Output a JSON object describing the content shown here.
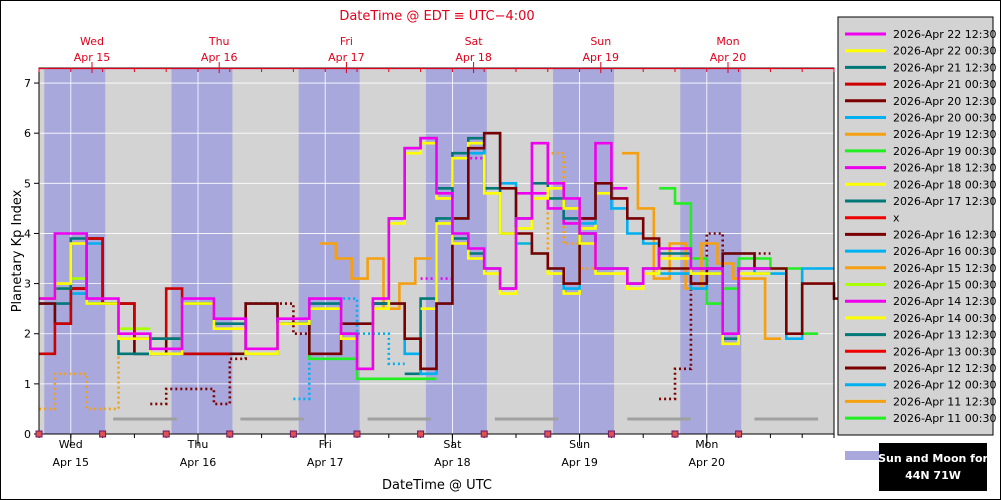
{
  "chart_data": {
    "type": "line",
    "title": "DateTime @ EDT ≡ UTC−4:00",
    "xlabel": "DateTime @ UTC",
    "ylabel": "Planetary Kp Index",
    "ylim": [
      0,
      7.3
    ],
    "yticks": [
      "0",
      "1",
      "2",
      "3",
      "4",
      "5",
      "6",
      "7"
    ],
    "grid": true,
    "legend_position": "right",
    "x_domain": [
      "2026-04-14 18:00",
      "2026-04-21 00:00"
    ],
    "top_axis": {
      "color": "#e0001b",
      "ticks": [
        {
          "at": "2026-04-15 04:00",
          "day": "Wed",
          "date": "Apr 15"
        },
        {
          "at": "2026-04-16 04:00",
          "day": "Thu",
          "date": "Apr 16"
        },
        {
          "at": "2026-04-17 04:00",
          "day": "Fri",
          "date": "Apr 17"
        },
        {
          "at": "2026-04-18 04:00",
          "day": "Sat",
          "date": "Apr 18"
        },
        {
          "at": "2026-04-19 04:00",
          "day": "Sun",
          "date": "Apr 19"
        },
        {
          "at": "2026-04-20 04:00",
          "day": "Mon",
          "date": "Apr 20"
        }
      ]
    },
    "bottom_axis": {
      "ticks": [
        {
          "at": "2026-04-15 00:00",
          "day": "Wed",
          "date": "Apr 15"
        },
        {
          "at": "2026-04-16 00:00",
          "day": "Thu",
          "date": "Apr 16"
        },
        {
          "at": "2026-04-17 00:00",
          "day": "Fri",
          "date": "Apr 17"
        },
        {
          "at": "2026-04-18 00:00",
          "day": "Sat",
          "date": "Apr 18"
        },
        {
          "at": "2026-04-19 00:00",
          "day": "Sun",
          "date": "Apr 19"
        },
        {
          "at": "2026-04-20 00:00",
          "day": "Mon",
          "date": "Apr 20"
        }
      ]
    },
    "night_bands": [
      [
        "2026-04-14 19:00",
        "2026-04-15 06:30"
      ],
      [
        "2026-04-15 19:00",
        "2026-04-16 06:30"
      ],
      [
        "2026-04-16 19:00",
        "2026-04-17 06:30"
      ],
      [
        "2026-04-17 19:00",
        "2026-04-18 06:30"
      ],
      [
        "2026-04-18 19:00",
        "2026-04-19 06:30"
      ],
      [
        "2026-04-19 19:00",
        "2026-04-20 06:30"
      ]
    ],
    "moon_bars": [
      [
        "2026-04-15 08:00",
        "2026-04-15 20:00"
      ],
      [
        "2026-04-16 08:00",
        "2026-04-16 20:00"
      ],
      [
        "2026-04-17 08:00",
        "2026-04-17 20:00"
      ],
      [
        "2026-04-18 08:00",
        "2026-04-18 20:00"
      ],
      [
        "2026-04-19 09:00",
        "2026-04-19 21:00"
      ],
      [
        "2026-04-20 09:00",
        "2026-04-20 21:00"
      ]
    ],
    "axis_markers": [
      "2026-04-14 18:00",
      "2026-04-15 06:00",
      "2026-04-15 18:00",
      "2026-04-16 06:00",
      "2026-04-16 18:00",
      "2026-04-17 06:00",
      "2026-04-17 18:00",
      "2026-04-18 06:00",
      "2026-04-18 18:00",
      "2026-04-19 06:00",
      "2026-04-19 18:00",
      "2026-04-20 06:00"
    ],
    "series": [
      {
        "name": "2026-Apr 22 12:30",
        "color": "#ee00ee",
        "dash": false,
        "step_hours": 3,
        "start": "2026-04-14 18:00",
        "values": [
          2.7,
          4.0,
          4.0,
          2.7,
          2.7,
          2.0,
          2.0,
          1.7,
          1.7,
          2.7,
          2.7,
          2.3,
          2.3,
          1.7,
          1.7,
          2.3,
          2.3,
          2.7,
          2.7,
          2.0,
          1.3,
          2.7,
          4.3,
          5.7,
          5.9,
          4.8,
          4.0,
          3.7,
          3.3,
          2.9,
          4.3,
          5.8,
          5.0,
          4.7,
          4.0,
          3.3,
          3.3,
          3.0,
          3.3,
          3.7,
          3.7,
          3.3,
          3.3,
          2.0,
          3.3,
          3.3
        ]
      },
      {
        "name": "2026-Apr 22 00:30",
        "color": "#ffff00",
        "dash": false,
        "step_hours": 3,
        "start": "2026-04-14 18:00",
        "values": [
          2.7,
          3.0,
          3.8,
          2.6,
          2.6,
          1.9,
          1.9,
          1.6,
          1.6,
          2.6,
          2.6,
          2.1,
          2.1,
          1.6,
          1.6,
          2.2,
          2.2,
          2.5,
          2.5,
          1.9,
          1.3,
          2.5,
          4.2,
          5.6,
          5.8,
          4.7,
          3.8,
          3.5,
          3.2,
          2.8,
          4.1,
          4.7,
          4.9,
          4.5,
          3.8,
          3.2,
          3.2,
          2.9,
          3.2,
          3.5,
          3.5,
          3.2,
          3.2,
          1.8,
          3.2,
          3.2
        ]
      },
      {
        "name": "2026-Apr 21 12:30",
        "color": "#007878",
        "dash": false,
        "step_hours": 3,
        "start": "2026-04-14 18:00",
        "values": [
          2.7,
          2.9,
          3.9,
          2.6,
          2.6,
          1.6,
          1.6,
          1.9,
          1.9,
          2.6,
          2.6,
          2.2,
          2.2,
          1.6,
          1.6,
          2.2,
          2.2,
          2.6,
          2.6,
          2.0,
          1.3,
          2.6,
          4.3,
          5.7,
          5.9,
          4.9,
          3.9,
          3.6,
          3.3,
          2.9,
          4.3,
          5.0,
          4.7,
          4.3,
          4.0,
          3.3,
          3.3,
          3.0,
          3.3,
          3.6,
          3.6,
          3.3,
          3.3,
          1.9,
          3.3,
          3.3
        ]
      },
      {
        "name": "2026-Apr 21 00:30",
        "color": "#cc0000",
        "dash": false,
        "step_hours": 3,
        "start": "2026-04-14 18:00",
        "values": [
          1.6,
          2.2,
          2.9,
          3.9,
          2.6,
          2.6,
          1.9,
          1.9,
          2.9,
          1.6,
          1.6,
          1.6
        ]
      },
      {
        "name": "2026-Apr 20 12:30",
        "color": "#7a0000",
        "dash": false,
        "step_hours": 3,
        "start": "2026-04-14 18:00",
        "values": [
          2.6,
          2.2,
          2.9,
          3.9,
          2.6,
          2.6,
          1.6,
          1.6,
          1.9,
          1.6,
          1.6,
          1.6,
          1.6,
          2.6,
          2.6,
          2.2,
          2.2,
          1.6,
          1.6,
          2.2,
          2.2,
          2.6,
          2.6,
          1.9,
          1.3,
          2.6,
          4.3,
          5.7,
          6.0,
          4.9,
          4.0,
          3.6,
          3.3,
          3.0,
          4.3,
          5.0,
          4.7,
          4.3,
          3.9,
          3.3,
          3.3,
          3.0,
          3.3,
          3.6,
          3.6,
          3.3,
          3.3,
          2.0,
          3.0,
          3.0,
          2.7
        ]
      },
      {
        "name": "2026-Apr 20 00:30",
        "color": "#00b0f0",
        "dash": false,
        "step_hours": 3,
        "start": "2026-04-14 18:00",
        "values": [
          2.6,
          2.2,
          2.8,
          3.8,
          2.6,
          2.6,
          1.6,
          1.6,
          1.6,
          1.6,
          1.6,
          1.6,
          1.6,
          2.6,
          2.6,
          2.2,
          2.2,
          1.6,
          1.6,
          2.2,
          2.2,
          2.6,
          2.6,
          1.6,
          1.2,
          2.6,
          4.3,
          5.6,
          6.0,
          5.0,
          3.8,
          3.6,
          3.3,
          2.9,
          4.2,
          5.0,
          4.5,
          4.0,
          3.8,
          3.2,
          3.2,
          2.9,
          3.2,
          3.6,
          3.6,
          3.2,
          3.2,
          1.9,
          3.3,
          3.3
        ]
      },
      {
        "name": "2026-Apr 19 12:30",
        "color": "#f5a011",
        "dash": false,
        "step_hours": 3,
        "start": "2026-04-16 23:00",
        "values": [
          3.8,
          3.5,
          3.1,
          3.5,
          2.5,
          3.0,
          3.5,
          null,
          null,
          null,
          null,
          null,
          null,
          null,
          null,
          null,
          null,
          null,
          null,
          5.6,
          4.5,
          3.1,
          3.8,
          2.9,
          3.8,
          3.4,
          3.1,
          3.1,
          1.9
        ]
      },
      {
        "name": "2026-Apr 19 00:30",
        "color": "#22ee22",
        "dash": false,
        "step_hours": 3,
        "start": "2026-04-16 18:00",
        "values": [
          2.2,
          1.5,
          1.5,
          1.5,
          1.1,
          1.1,
          1.1,
          1.1,
          1.1,
          null,
          null,
          null,
          null,
          null,
          null,
          null,
          null,
          null,
          null,
          null,
          null,
          null,
          null,
          4.9,
          4.6,
          3.5,
          2.6,
          2.9,
          3.5,
          3.5,
          3.3,
          3.3,
          2.0
        ]
      },
      {
        "name": "2026-Apr 18 12:30",
        "color": "#ee00ee",
        "dash": false,
        "step_hours": 3,
        "start": "2026-04-18 12:00",
        "values": [
          4.8,
          4.8,
          4.5,
          4.2,
          4.3,
          5.8,
          4.9
        ]
      },
      {
        "name": "2026-Apr 18 00:30",
        "color": "#ffff00",
        "dash": false,
        "step_hours": 3,
        "start": "2026-04-17 18:00",
        "values": [
          2.5,
          4.2,
          5.5,
          5.8,
          4.8,
          4.0,
          3.8,
          3.6,
          3.2,
          2.8,
          4.1,
          4.8
        ]
      },
      {
        "name": "2026-Apr 17 12:30",
        "color": "#007878",
        "dash": false,
        "step_hours": 3,
        "start": "2026-04-17 15:00",
        "values": [
          1.2,
          2.7,
          4.3,
          5.6,
          5.9,
          4.9,
          4.0
        ]
      },
      {
        "name": "x",
        "color": "#ee0000",
        "dash": false,
        "step_hours": 3,
        "start": "2026-04-14 18:00",
        "values": []
      },
      {
        "name": "2026-Apr 16 12:30",
        "color": "#7a0000",
        "dash": true,
        "step_hours": 3,
        "start": "2026-04-15 15:00",
        "values": [
          0.6,
          0.9,
          0.9,
          0.9,
          0.6,
          1.5,
          2.6,
          2.6,
          2.6,
          2.0,
          null,
          null,
          null,
          null,
          null,
          null,
          null,
          null,
          null,
          null,
          null,
          null,
          null,
          null,
          null,
          null,
          null,
          null,
          null,
          null,
          null,
          null,
          0.7,
          1.3,
          3.0,
          4.0,
          3.6,
          3.6,
          3.6
        ]
      },
      {
        "name": "2026-Apr 16 00:30",
        "color": "#00b0f0",
        "dash": true,
        "step_hours": 3,
        "start": "2026-04-16 18:00",
        "values": [
          0.7,
          2.6,
          2.6,
          2.7,
          2.0,
          2.0,
          1.4
        ]
      },
      {
        "name": "2026-Apr 15 12:30",
        "color": "#f5a011",
        "dash": true,
        "step_hours": 3,
        "start": "2026-04-14 18:00",
        "values": [
          0.5,
          1.2,
          1.2,
          0.5,
          0.5,
          1.6,
          null,
          null,
          null,
          null,
          null,
          null,
          null,
          null,
          null,
          null,
          null,
          null,
          null,
          null,
          null,
          null,
          null,
          null,
          null,
          null,
          null,
          null,
          null,
          null,
          null,
          3.6,
          5.6,
          3.8,
          3.3
        ]
      },
      {
        "name": "2026-Apr 15 00:30",
        "color": "#aaff00",
        "dash": false,
        "step_hours": 3,
        "start": "2026-04-14 18:00",
        "values": [
          2.7,
          2.9,
          3.1,
          2.6,
          2.6,
          2.1,
          2.1
        ]
      },
      {
        "name": "2026-Apr 14 12:30",
        "color": "#ee00ee",
        "dash": true,
        "step_hours": 3,
        "start": "2026-04-17 18:00",
        "values": [
          3.1,
          3.1,
          5.5,
          5.5
        ]
      },
      {
        "name": "2026-Apr 14 00:30",
        "color": "#ffff00",
        "dash": false,
        "step_hours": 3,
        "start": "2026-04-14 18:00",
        "values": []
      },
      {
        "name": "2026-Apr 13 12:30",
        "color": "#007878",
        "dash": false,
        "step_hours": 3,
        "start": "2026-04-14 18:00",
        "values": [
          2.6,
          2.6,
          2.9,
          3.9
        ]
      },
      {
        "name": "2026-Apr 13 00:30",
        "color": "#ee0000",
        "dash": false,
        "step_hours": 3,
        "start": "2026-04-14 18:00",
        "values": []
      },
      {
        "name": "2026-Apr 12 12:30",
        "color": "#7a0000",
        "dash": false,
        "step_hours": 3,
        "start": "2026-04-14 18:00",
        "values": []
      },
      {
        "name": "2026-Apr 12 00:30",
        "color": "#00b0f0",
        "dash": false,
        "step_hours": 3,
        "start": "2026-04-14 18:00",
        "values": []
      },
      {
        "name": "2026-Apr 11 12:30",
        "color": "#f5a011",
        "dash": false,
        "step_hours": 3,
        "start": "2026-04-14 18:00",
        "values": []
      },
      {
        "name": "2026-Apr 11 00:30",
        "color": "#22ee22",
        "dash": false,
        "step_hours": 3,
        "start": "2026-04-14 18:00",
        "values": []
      }
    ],
    "sun_moon_label": {
      "title": "Sun and Moon for",
      "location": "44N 71W"
    }
  }
}
